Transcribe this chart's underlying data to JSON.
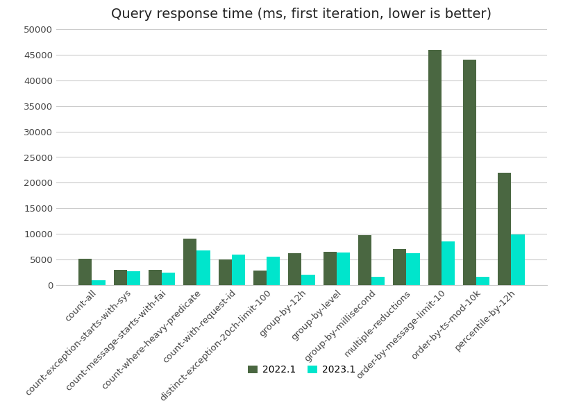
{
  "title": "Query response time (ms, first iteration, lower is better)",
  "categories": [
    "count-all",
    "count-exception-starts-with-sys",
    "count-message-starts-with-fai",
    "count-where-heavy-predicate",
    "count-with-request-id",
    "distinct-exception-20ch-limit-100",
    "group-by-12h",
    "group-by-level",
    "group-by-millisecond",
    "multiple-reductions",
    "order-by-message-limit-10",
    "order-by-ts-mod-10k",
    "percentile-by-12h"
  ],
  "values_2022": [
    5100,
    3000,
    3000,
    9000,
    5000,
    2800,
    6200,
    6500,
    9800,
    7000,
    46000,
    44000,
    22000
  ],
  "values_2023": [
    900,
    2700,
    2400,
    6800,
    5900,
    5500,
    2000,
    6400,
    1600,
    6200,
    8500,
    1600,
    9900
  ],
  "color_2022": "#4a6741",
  "color_2023": "#00e5cc",
  "legend_2022": "2022.1",
  "legend_2023": "2023.1",
  "ylim": [
    0,
    50000
  ],
  "yticks": [
    0,
    5000,
    10000,
    15000,
    20000,
    25000,
    30000,
    35000,
    40000,
    45000,
    50000
  ],
  "background_color": "#ffffff",
  "grid_color": "#cccccc",
  "title_fontsize": 14,
  "tick_fontsize": 9.5,
  "bar_width": 0.38
}
